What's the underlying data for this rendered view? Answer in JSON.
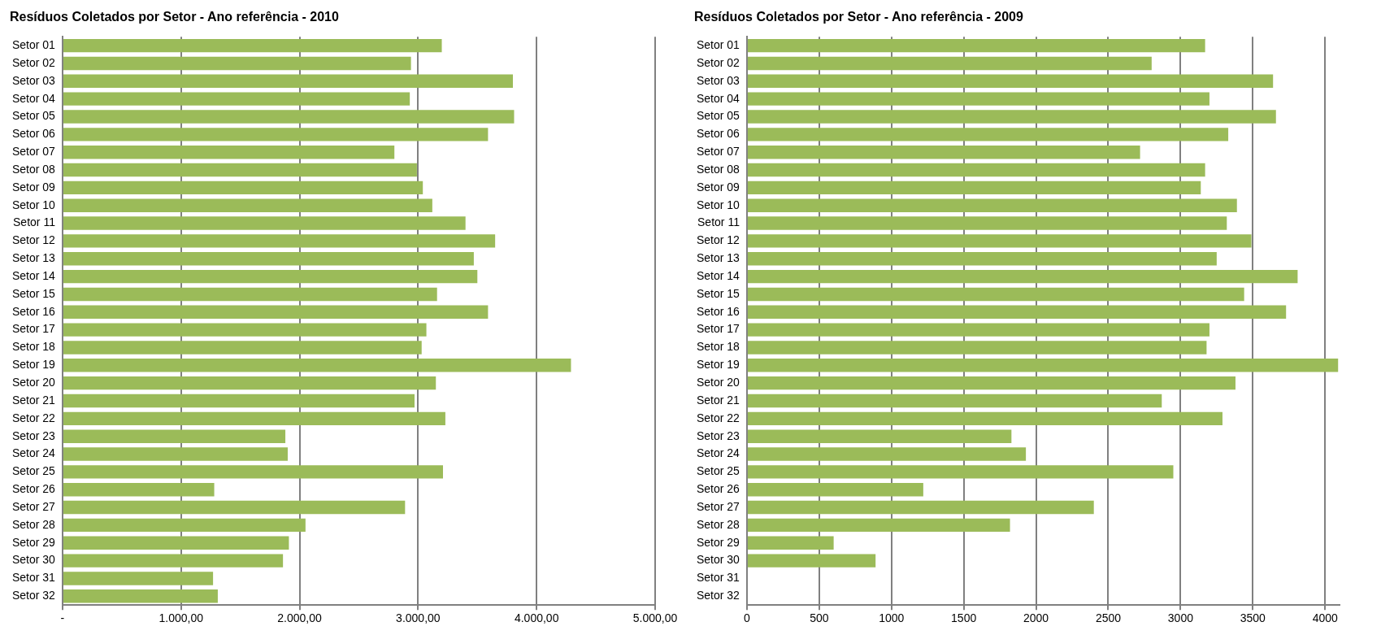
{
  "chart_data": [
    {
      "type": "bar",
      "orientation": "horizontal",
      "title": "Resíduos Coletados por Setor - Ano referência - 2010",
      "categories": [
        "Setor 01",
        "Setor 02",
        "Setor 03",
        "Setor 04",
        "Setor 05",
        "Setor 06",
        "Setor 07",
        "Setor 08",
        "Setor 09",
        "Setor 10",
        "Setor 11",
        "Setor 12",
        "Setor 13",
        "Setor 14",
        "Setor 15",
        "Setor 16",
        "Setor 17",
        "Setor 18",
        "Setor 19",
        "Setor 20",
        "Setor 21",
        "Setor 22",
        "Setor 23",
        "Setor 24",
        "Setor 25",
        "Setor 26",
        "Setor 27",
        "Setor 28",
        "Setor 29",
        "Setor 30",
        "Setor 31",
        "Setor 32"
      ],
      "values": [
        3200,
        2940,
        3800,
        2930,
        3810,
        3590,
        2800,
        2990,
        3040,
        3120,
        3400,
        3650,
        3470,
        3500,
        3160,
        3590,
        3070,
        3030,
        4290,
        3150,
        2970,
        3230,
        1880,
        1900,
        3210,
        1280,
        2890,
        2050,
        1910,
        1860,
        1270,
        1310
      ],
      "color": "#9bbb59",
      "xlim": [
        0,
        5000
      ],
      "xticks": [
        {
          "value": 0,
          "label": "-"
        },
        {
          "value": 1000,
          "label": "1.000,00"
        },
        {
          "value": 2000,
          "label": "2.000,00"
        },
        {
          "value": 3000,
          "label": "3.000,00"
        },
        {
          "value": 4000,
          "label": "4.000,00"
        },
        {
          "value": 5000,
          "label": "5.000,00"
        }
      ],
      "grid": "x"
    },
    {
      "type": "bar",
      "orientation": "horizontal",
      "title": "Resíduos Coletados por Setor - Ano referência - 2009",
      "categories": [
        "Setor 01",
        "Setor 02",
        "Setor 03",
        "Setor 04",
        "Setor 05",
        "Setor 06",
        "Setor 07",
        "Setor 08",
        "Setor 09",
        "Setor 10",
        "Setor 11",
        "Setor 12",
        "Setor 13",
        "Setor 14",
        "Setor 15",
        "Setor 16",
        "Setor 17",
        "Setor 18",
        "Setor 19",
        "Setor 20",
        "Setor 21",
        "Setor 22",
        "Setor 23",
        "Setor 24",
        "Setor 25",
        "Setor 26",
        "Setor 27",
        "Setor 28",
        "Setor 29",
        "Setor 30",
        "Setor 31",
        "Setor 32"
      ],
      "values": [
        3170,
        2800,
        3640,
        3200,
        3660,
        3330,
        2720,
        3170,
        3140,
        3390,
        3320,
        3490,
        3250,
        3810,
        3440,
        3730,
        3200,
        3180,
        4090,
        3380,
        2870,
        3290,
        1830,
        1930,
        2950,
        1220,
        2400,
        1820,
        600,
        890,
        null,
        null
      ],
      "color": "#9bbb59",
      "xlim": [
        0,
        4100
      ],
      "xticks": [
        0,
        500,
        1000,
        1500,
        2000,
        2500,
        3000,
        3500,
        4000
      ],
      "grid": "x"
    }
  ]
}
